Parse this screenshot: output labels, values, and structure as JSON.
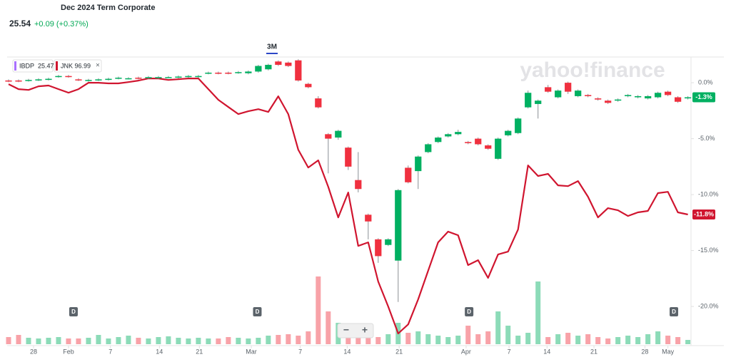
{
  "chart_data": {
    "type": "candlestick",
    "title": "Dec 2024 Term Corporate",
    "price": "25.54",
    "change": "+0.09 (+0.37%)",
    "range": "3M",
    "watermark": "yahoo!finance",
    "legend": [
      {
        "name": "IBDP",
        "value": 25.47,
        "color": "#a970ff"
      },
      {
        "name": "JNK",
        "value": 96.99,
        "color": "#d0152f"
      }
    ],
    "close_icon": "×",
    "zoom": [
      "−",
      "+"
    ],
    "xlim": [
      0,
      68.1
    ],
    "ylim": [
      -23.5,
      2.3
    ],
    "yticks": [
      {
        "value": 0,
        "label": "0.0%"
      },
      {
        "value": -5,
        "label": "-5.0%"
      },
      {
        "value": -10,
        "label": "-10.0%"
      },
      {
        "value": -15,
        "label": "-15.0%"
      },
      {
        "value": -20,
        "label": "-20.0%"
      }
    ],
    "xticks": [
      {
        "value": 2.5,
        "label": "28"
      },
      {
        "value": 6,
        "label": "Feb"
      },
      {
        "value": 10.2,
        "label": "7"
      },
      {
        "value": 15.1,
        "label": "14"
      },
      {
        "value": 19.1,
        "label": "21"
      },
      {
        "value": 24.3,
        "label": "Mar"
      },
      {
        "value": 29.2,
        "label": "7"
      },
      {
        "value": 33.9,
        "label": "14"
      },
      {
        "value": 39.1,
        "label": "21"
      },
      {
        "value": 45.8,
        "label": "Apr"
      },
      {
        "value": 50.1,
        "label": "7"
      },
      {
        "value": 53.9,
        "label": "14"
      },
      {
        "value": 58.6,
        "label": "21"
      },
      {
        "value": 63.7,
        "label": "28"
      },
      {
        "value": 66,
        "label": "May"
      }
    ],
    "grid": false,
    "candles": {
      "name": "IBDP",
      "up_color": "#00b061",
      "down_color": "#f0303f",
      "open": [
        0.2,
        0.2,
        0.2,
        0.25,
        0.3,
        0.55,
        0.6,
        0.3,
        0.2,
        0.25,
        0.3,
        0.4,
        0.4,
        0.45,
        0.45,
        0.45,
        0.5,
        0.5,
        0.55,
        0.55,
        0.85,
        0.9,
        0.9,
        0.9,
        0.85,
        1.0,
        1.2,
        1.9,
        1.8,
        2.0,
        -0.1,
        -1.4,
        -4.6,
        -4.9,
        -5.8,
        -8.7,
        -11.8,
        -14.0,
        -14.5,
        -15.9,
        -7.6,
        -7.9,
        -6.2,
        -5.3,
        -4.8,
        -4.6,
        -5.3,
        -5.0,
        -5.6,
        -6.8,
        -4.7,
        -4.5,
        -2.2,
        -1.9,
        -0.4,
        -1.3,
        0.0,
        -1.2,
        -1.1,
        -1.4,
        -1.6,
        -1.6,
        -1.2,
        -1.3,
        -1.4,
        -1.3,
        -0.8,
        -1.3,
        -1.4
      ],
      "high": [
        0.3,
        0.3,
        0.35,
        0.4,
        0.45,
        0.7,
        0.7,
        0.4,
        0.35,
        0.4,
        0.45,
        0.55,
        0.5,
        0.55,
        0.6,
        0.6,
        0.6,
        0.65,
        0.7,
        0.7,
        1.0,
        1.0,
        1.0,
        1.05,
        1.1,
        1.6,
        1.7,
        2.0,
        1.9,
        2.1,
        0.0,
        -1.2,
        -4.5,
        -4.2,
        -5.7,
        -6.2,
        -11.7,
        -13.9,
        -13.9,
        -9.5,
        -7.4,
        -6.5,
        -5.4,
        -4.8,
        -4.5,
        -4.2,
        -5.2,
        -4.9,
        -5.5,
        -4.9,
        -4.2,
        -3.1,
        -0.7,
        -1.5,
        -0.2,
        -0.6,
        0.1,
        -0.6,
        -1.0,
        -1.3,
        -1.5,
        -1.4,
        -1.0,
        -1.1,
        -1.1,
        -0.8,
        -0.7,
        -1.2,
        -1.2
      ],
      "low": [
        0.05,
        0.05,
        0.1,
        0.15,
        0.2,
        0.45,
        0.45,
        0.15,
        0.1,
        0.15,
        0.2,
        0.3,
        0.3,
        0.3,
        0.35,
        0.35,
        0.4,
        0.4,
        0.45,
        0.45,
        0.75,
        0.75,
        0.75,
        0.8,
        0.75,
        0.9,
        1.1,
        1.5,
        1.4,
        0.1,
        -0.5,
        -2.3,
        -8.1,
        -5.1,
        -7.8,
        -9.8,
        -14.0,
        -16.1,
        -14.6,
        -19.6,
        -9.0,
        -9.5,
        -6.3,
        -5.4,
        -4.9,
        -4.7,
        -5.5,
        -5.6,
        -6.0,
        -6.9,
        -4.8,
        -4.6,
        -2.3,
        -3.2,
        -0.9,
        -1.4,
        -1.0,
        -1.3,
        -1.3,
        -1.6,
        -1.9,
        -1.7,
        -1.3,
        -1.4,
        -1.5,
        -1.4,
        -1.2,
        -1.8,
        -1.5
      ],
      "close": [
        0.15,
        0.15,
        0.25,
        0.3,
        0.35,
        0.6,
        0.55,
        0.25,
        0.25,
        0.3,
        0.35,
        0.45,
        0.4,
        0.4,
        0.5,
        0.5,
        0.5,
        0.55,
        0.6,
        0.6,
        0.9,
        0.85,
        0.85,
        0.95,
        1.0,
        1.5,
        1.6,
        1.6,
        1.5,
        0.2,
        -0.4,
        -2.2,
        -5.0,
        -4.3,
        -7.5,
        -9.5,
        -12.4,
        -15.5,
        -14.0,
        -9.6,
        -8.9,
        -6.6,
        -5.5,
        -4.9,
        -4.6,
        -4.4,
        -5.4,
        -5.5,
        -5.9,
        -5.0,
        -4.3,
        -3.2,
        -0.9,
        -1.6,
        -0.8,
        -0.7,
        -0.8,
        -0.7,
        -1.2,
        -1.5,
        -1.8,
        -1.5,
        -1.1,
        -1.2,
        -1.2,
        -0.9,
        -1.1,
        -1.7,
        -1.3
      ],
      "last_label": "-1.3%"
    },
    "line": {
      "name": "JNK",
      "color": "#d0152f",
      "values": [
        -0.13,
        -0.57,
        -0.64,
        -0.32,
        -0.25,
        -0.57,
        -0.89,
        -0.57,
        0,
        0,
        -0.06,
        -0.06,
        0.06,
        0.19,
        0.38,
        0.38,
        0.25,
        0.32,
        0.38,
        0.38,
        -0.57,
        -1.53,
        -2.17,
        -2.8,
        -2.55,
        -2.36,
        -2.61,
        -1.21,
        -2.8,
        -5.99,
        -7.58,
        -6.94,
        -9.3,
        -12.04,
        -9.81,
        -14.59,
        -14.27,
        -17.77,
        -20,
        -22.42,
        -21.6,
        -19.36,
        -16.8,
        -14.27,
        -13.31,
        -13.63,
        -16.3,
        -15.86,
        -17.45,
        -15.35,
        -15.1,
        -13.12,
        -7.39,
        -8.34,
        -8.15,
        -9.17,
        -9.24,
        -8.79,
        -10.19,
        -12.04,
        -11.21,
        -11.4,
        -11.91,
        -11.59,
        -11.46,
        -9.87,
        -9.75,
        -11.59,
        -11.78
      ],
      "last_label": "-11.8%"
    },
    "volume": [
      10,
      13,
      9,
      8,
      9,
      10,
      8,
      8,
      9,
      13,
      8,
      10,
      12,
      9,
      8,
      10,
      11,
      9,
      8,
      9,
      8,
      8,
      10,
      9,
      8,
      9,
      12,
      13,
      14,
      12,
      18,
      95,
      46,
      30,
      20,
      14,
      12,
      10,
      14,
      30,
      16,
      18,
      14,
      12,
      10,
      12,
      26,
      14,
      18,
      46,
      26,
      12,
      16,
      88,
      10,
      14,
      16,
      12,
      14,
      10,
      8,
      10,
      12,
      10,
      14,
      18,
      12,
      10,
      6
    ],
    "dividends": {
      "label": "D",
      "x": [
        6.5,
        24.9,
        46.1,
        66.6
      ]
    }
  }
}
